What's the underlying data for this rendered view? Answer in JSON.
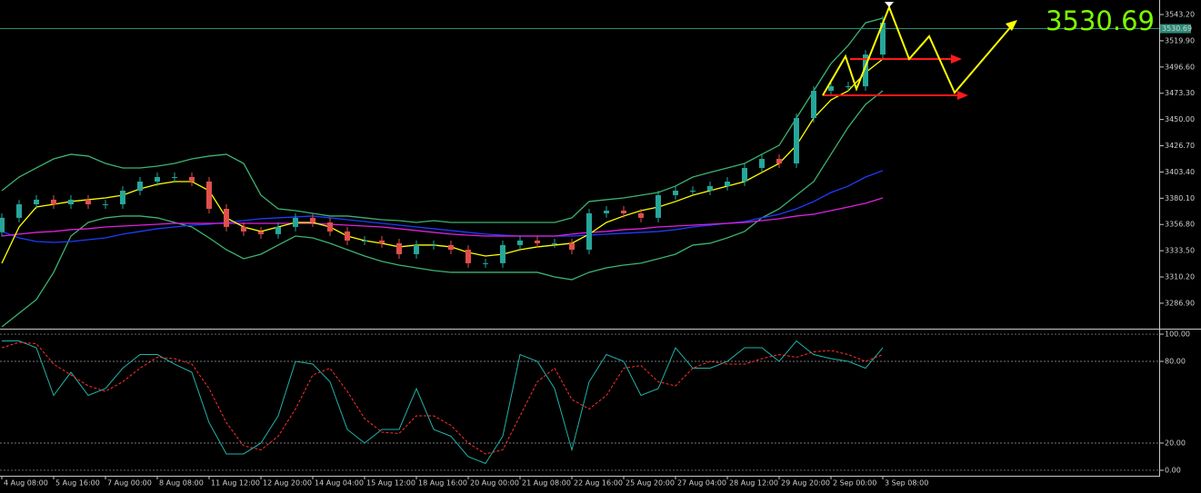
{
  "chart_data": [
    {
      "type": "candlestick",
      "categories": [
        "4 Aug 08:00",
        null,
        null,
        "5 Aug 16:00",
        null,
        null,
        "7 Aug 00:00",
        null,
        null,
        "8 Aug 08:00",
        null,
        null,
        "11 Aug 12:00",
        null,
        null,
        "12 Aug 20:00",
        null,
        null,
        "14 Aug 04:00",
        null,
        null,
        "15 Aug 12:00",
        null,
        null,
        "18 Aug 16:00",
        null,
        null,
        "20 Aug 00:00",
        null,
        null,
        "21 Aug 08:00",
        null,
        null,
        "22 Aug 16:00",
        null,
        null,
        "25 Aug 20:00",
        null,
        null,
        "27 Aug 04:00",
        null,
        null,
        "28 Aug 12:00",
        null,
        null,
        "29 Aug 20:00",
        null,
        null,
        "2 Sep 00:00",
        null,
        null,
        "3 Sep 08:00"
      ],
      "open": [
        3350.0,
        3362.7,
        3374.7,
        3378.8,
        3374.7,
        3378.8,
        3374.7,
        3374.7,
        3386.8,
        3394.9,
        3398.9,
        3398.9,
        3394.9,
        3370.7,
        3354.6,
        3350.6,
        3348.2,
        3354.6,
        3362.7,
        3358.6,
        3350.6,
        3342.5,
        3342.5,
        3340.1,
        3330.4,
        3338.5,
        3338.5,
        3334.4,
        3322.4,
        3322.4,
        3338.5,
        3342.5,
        3340.1,
        3340.1,
        3334.4,
        3366.7,
        3369.1,
        3366.7,
        3362.7,
        3382.8,
        3386.8,
        3386.8,
        3390.9,
        3394.9,
        3407.0,
        3415.0,
        3411.0,
        3451.3,
        3475.5,
        3479.5,
        3479.5,
        3507.7
      ],
      "high": [
        3366.7,
        3378.7,
        3382.8,
        3382.8,
        3382.8,
        3382.8,
        3378.7,
        3390.8,
        3398.9,
        3402.9,
        3402.9,
        3402.9,
        3398.9,
        3374.7,
        3358.6,
        3354.6,
        3358.6,
        3366.7,
        3366.7,
        3362.6,
        3354.6,
        3346.5,
        3346.5,
        3344.1,
        3342.5,
        3342.5,
        3342.5,
        3338.4,
        3326.4,
        3342.5,
        3346.5,
        3346.5,
        3344.1,
        3344.1,
        3370.7,
        3373.1,
        3373.1,
        3370.7,
        3386.8,
        3390.8,
        3390.8,
        3394.9,
        3398.9,
        3411.0,
        3419.0,
        3419.0,
        3455.3,
        3479.5,
        3483.5,
        3483.5,
        3511.7,
        3542.0
      ],
      "low": [
        3346.0,
        3358.7,
        3370.7,
        3370.7,
        3370.7,
        3370.7,
        3370.7,
        3370.7,
        3382.8,
        3390.9,
        3394.9,
        3390.9,
        3366.7,
        3350.6,
        3346.6,
        3344.2,
        3344.2,
        3350.6,
        3354.6,
        3346.6,
        3338.5,
        3338.5,
        3336.1,
        3326.4,
        3326.4,
        3334.5,
        3330.4,
        3318.4,
        3318.4,
        3318.4,
        3334.5,
        3336.1,
        3336.1,
        3330.4,
        3330.4,
        3362.7,
        3362.7,
        3358.7,
        3358.7,
        3378.8,
        3382.8,
        3382.8,
        3386.9,
        3390.9,
        3403.0,
        3407.0,
        3407.0,
        3447.3,
        3471.5,
        3475.5,
        3475.5,
        3503.7
      ],
      "close": [
        3362.7,
        3374.7,
        3378.8,
        3374.7,
        3378.8,
        3374.7,
        3374.7,
        3386.8,
        3394.9,
        3398.9,
        3398.9,
        3394.9,
        3370.7,
        3354.6,
        3350.6,
        3348.2,
        3354.6,
        3362.7,
        3358.6,
        3350.6,
        3342.5,
        3342.5,
        3340.1,
        3330.4,
        3338.5,
        3338.5,
        3334.4,
        3322.4,
        3322.4,
        3338.5,
        3342.5,
        3340.1,
        3340.1,
        3334.4,
        3366.7,
        3369.1,
        3366.7,
        3362.7,
        3382.8,
        3386.8,
        3386.8,
        3390.9,
        3394.9,
        3407.0,
        3415.0,
        3411.0,
        3451.3,
        3475.5,
        3479.5,
        3479.5,
        3507.7,
        3536.0
      ],
      "up_color": "#26a69a",
      "down_color": "#e0504a",
      "series": [
        {
          "color": "#3cb371",
          "values": [
            3386.8,
            3398.9,
            3407.0,
            3415.0,
            3419.1,
            3417.5,
            3411.0,
            3407.0,
            3407.0,
            3408.6,
            3411.0,
            3415.0,
            3417.5,
            3419.1,
            3411.0,
            3382.8,
            3370.7,
            3369.1,
            3366.7,
            3364.3,
            3364.3,
            3362.7,
            3361.0,
            3360.2,
            3358.6,
            3360.2,
            3358.6,
            3358.6,
            3358.6,
            3358.6,
            3358.6,
            3358.6,
            3358.6,
            3362.7,
            3377.2,
            3378.8,
            3380.4,
            3382.8,
            3385.2,
            3390.9,
            3398.9,
            3403.0,
            3407.0,
            3411.0,
            3419.1,
            3427.1,
            3451.3,
            3475.5,
            3499.7,
            3515.8,
            3535.9,
            3540.0
          ]
        },
        {
          "color": "#3cb371",
          "values": [
            3265.9,
            3278.0,
            3290.1,
            3314.3,
            3346.5,
            3358.6,
            3362.7,
            3364.3,
            3364.3,
            3362.7,
            3358.6,
            3354.6,
            3344.9,
            3334.4,
            3326.4,
            3330.4,
            3338.5,
            3346.5,
            3344.9,
            3340.1,
            3334.4,
            3328.8,
            3324.0,
            3320.7,
            3318.3,
            3315.9,
            3314.3,
            3314.3,
            3314.3,
            3314.3,
            3314.3,
            3314.3,
            3310.2,
            3307.8,
            3314.3,
            3318.3,
            3320.7,
            3322.4,
            3326.4,
            3330.4,
            3338.5,
            3340.1,
            3344.9,
            3350.6,
            3362.7,
            3370.7,
            3382.8,
            3394.9,
            3419.1,
            3443.3,
            3463.4,
            3475.5
          ]
        },
        {
          "color": "#1e3cff",
          "values": [
            3350.6,
            3344.9,
            3341.7,
            3340.9,
            3341.7,
            3343.3,
            3344.9,
            3348.2,
            3350.6,
            3353.0,
            3354.6,
            3356.2,
            3357.0,
            3358.6,
            3360.2,
            3361.9,
            3362.7,
            3363.5,
            3364.3,
            3362.7,
            3361.0,
            3359.4,
            3357.8,
            3356.2,
            3354.6,
            3353.0,
            3351.4,
            3349.8,
            3348.2,
            3347.3,
            3346.5,
            3346.5,
            3346.5,
            3346.5,
            3347.3,
            3348.2,
            3349.0,
            3349.8,
            3350.6,
            3352.2,
            3354.6,
            3356.2,
            3357.8,
            3359.4,
            3362.7,
            3365.9,
            3370.7,
            3377.2,
            3385.2,
            3390.9,
            3398.9,
            3404.6
          ]
        },
        {
          "color": "#e020e0",
          "values": [
            3346.5,
            3348.2,
            3349.8,
            3350.6,
            3352.2,
            3353.0,
            3354.6,
            3355.4,
            3356.2,
            3357.0,
            3357.8,
            3357.8,
            3357.8,
            3357.8,
            3357.8,
            3357.8,
            3357.8,
            3357.8,
            3357.8,
            3357.0,
            3356.2,
            3355.4,
            3354.6,
            3353.0,
            3351.4,
            3349.8,
            3348.2,
            3347.3,
            3346.5,
            3346.5,
            3346.5,
            3346.5,
            3346.5,
            3348.2,
            3349.8,
            3350.6,
            3352.2,
            3353.0,
            3354.6,
            3355.4,
            3356.2,
            3357.0,
            3357.8,
            3358.6,
            3360.2,
            3361.9,
            3364.3,
            3365.9,
            3369.1,
            3372.3,
            3375.6,
            3380.4
          ]
        },
        {
          "color": "#ffff00",
          "values": [
            3322.4,
            3354.6,
            3372.3,
            3374.7,
            3377.2,
            3378.8,
            3380.4,
            3382.8,
            3388.4,
            3392.5,
            3394.9,
            3394.9,
            3386.8,
            3362.7,
            3354.6,
            3350.6,
            3354.6,
            3358.6,
            3358.6,
            3354.6,
            3346.5,
            3342.5,
            3340.1,
            3336.9,
            3338.5,
            3338.5,
            3336.9,
            3332.0,
            3328.8,
            3330.4,
            3334.4,
            3336.9,
            3338.5,
            3340.1,
            3348.2,
            3358.6,
            3364.3,
            3369.1,
            3372.3,
            3377.2,
            3382.8,
            3386.8,
            3390.9,
            3394.9,
            3403.0,
            3411.0,
            3427.1,
            3451.3,
            3467.4,
            3475.5,
            3491.6,
            3503.7
          ]
        }
      ],
      "last_price": 3530.69,
      "last_price_color": "#7cfc00",
      "ylim": [
        3265.9,
        3554.5
      ],
      "yticks": [
        {
          "value": 3543.2,
          "label": "3543.20"
        },
        {
          "value": 3519.9,
          "label": "3519.90"
        },
        {
          "value": 3496.6,
          "label": "3496.60"
        },
        {
          "value": 3473.3,
          "label": "3473.30"
        },
        {
          "value": 3450.0,
          "label": "3450.00"
        },
        {
          "value": 3426.7,
          "label": "3426.70"
        },
        {
          "value": 3403.4,
          "label": "3403.40"
        },
        {
          "value": 3380.1,
          "label": "3380.10"
        },
        {
          "value": 3356.8,
          "label": "3356.80"
        },
        {
          "value": 3333.5,
          "label": "3333.50"
        },
        {
          "value": 3310.2,
          "label": "3310.20"
        },
        {
          "value": 3286.9,
          "label": "3286.90"
        }
      ]
    },
    {
      "type": "line",
      "series": [
        {
          "color": "#20b2aa",
          "dash": false,
          "values": [
            95,
            95,
            90,
            55,
            72,
            55,
            60,
            75,
            85,
            85,
            78,
            72,
            35,
            12,
            12,
            20,
            40,
            80,
            78,
            65,
            30,
            20,
            30,
            30,
            60,
            30,
            25,
            10,
            5,
            25,
            85,
            80,
            60,
            15,
            65,
            85,
            80,
            55,
            60,
            90,
            75,
            75,
            80,
            90,
            90,
            80,
            95,
            85,
            82,
            80,
            75,
            90
          ]
        },
        {
          "color": "#ff3030",
          "dash": true,
          "values": [
            90,
            94,
            93,
            78,
            70,
            62,
            58,
            65,
            75,
            83,
            82,
            78,
            60,
            35,
            18,
            15,
            25,
            45,
            70,
            75,
            58,
            38,
            28,
            27,
            40,
            40,
            33,
            20,
            12,
            15,
            40,
            65,
            75,
            52,
            45,
            55,
            75,
            77,
            65,
            62,
            75,
            80,
            78,
            78,
            82,
            85,
            83,
            87,
            88,
            85,
            80,
            85
          ]
        }
      ],
      "ylim": [
        -2.7,
        102.7
      ],
      "yticks": [
        {
          "value": 100,
          "label": "100.00"
        },
        {
          "value": 80,
          "label": "80.00"
        },
        {
          "value": 20,
          "label": "20.00"
        },
        {
          "value": 0,
          "label": "0.00"
        }
      ]
    }
  ]
}
